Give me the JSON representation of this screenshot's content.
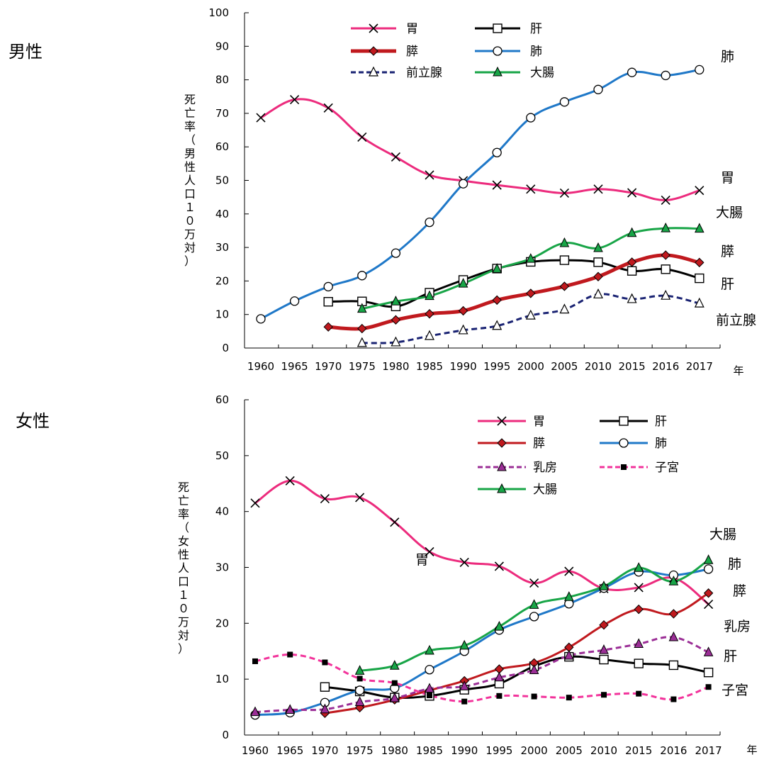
{
  "chart_data": [
    {
      "type": "line",
      "panel_label": "男性",
      "xlabel": "年",
      "ylabel": "死亡率（男性人口１０万対）",
      "ylim": [
        0,
        100
      ],
      "yticks": [
        0,
        10,
        20,
        30,
        40,
        50,
        60,
        70,
        80,
        90,
        100
      ],
      "categories": [
        "1960",
        "1965",
        "1970",
        "1975",
        "1980",
        "1985",
        "1990",
        "1995",
        "2000",
        "2005",
        "2010",
        "2015",
        "2016",
        "2017"
      ],
      "legend_position": "top",
      "series": [
        {
          "name": "胃",
          "color": "#EC2B7D",
          "marker": "x",
          "dash": false,
          "width": 3,
          "values": [
            68.7,
            74.1,
            71.6,
            62.9,
            57.0,
            51.6,
            49.9,
            48.6,
            47.4,
            46.2,
            47.4,
            46.3,
            44.1,
            47.0
          ]
        },
        {
          "name": "肝",
          "color": "#000000",
          "marker": "square-open",
          "dash": false,
          "width": 3,
          "values": [
            null,
            null,
            13.8,
            13.9,
            12.4,
            16.5,
            20.3,
            23.7,
            25.7,
            26.2,
            25.6,
            23.0,
            23.5,
            20.8
          ]
        },
        {
          "name": "膵",
          "color": "#C0191E",
          "marker": "diamond",
          "dash": false,
          "width": 5,
          "values": [
            null,
            null,
            6.3,
            5.8,
            8.4,
            10.2,
            11.1,
            14.3,
            16.3,
            18.4,
            21.3,
            25.6,
            27.7,
            25.5
          ]
        },
        {
          "name": "肺",
          "color": "#1F78C8",
          "marker": "circle-open",
          "dash": false,
          "width": 3,
          "values": [
            8.7,
            14.0,
            18.3,
            21.6,
            28.3,
            37.5,
            49.0,
            58.3,
            68.7,
            73.4,
            77.1,
            82.2,
            81.3,
            83.0
          ]
        },
        {
          "name": "前立腺",
          "color": "#1A2373",
          "marker": "triangle-open",
          "dash": true,
          "width": 3,
          "values": [
            null,
            null,
            null,
            1.5,
            1.7,
            3.6,
            5.3,
            6.6,
            9.7,
            11.5,
            16.0,
            14.6,
            15.6,
            13.3
          ]
        },
        {
          "name": "大腸",
          "color": "#18A547",
          "marker": "triangle",
          "dash": false,
          "width": 3,
          "values": [
            null,
            null,
            null,
            11.7,
            13.9,
            15.5,
            19.2,
            23.6,
            26.6,
            31.3,
            29.8,
            34.3,
            35.7,
            35.6
          ]
        }
      ],
      "end_labels": [
        "肺",
        "胃",
        "大腸",
        "膵",
        "肝",
        "前立腺"
      ]
    },
    {
      "type": "line",
      "panel_label": "女性",
      "xlabel": "年",
      "ylabel": "死亡率（女性人口１０万対）",
      "ylim": [
        0,
        60
      ],
      "yticks": [
        0,
        10,
        20,
        30,
        40,
        50,
        60
      ],
      "categories": [
        "1960",
        "1965",
        "1970",
        "1975",
        "1980",
        "1985",
        "1990",
        "1995",
        "2000",
        "2005",
        "2010",
        "2015",
        "2016",
        "2017"
      ],
      "legend_position": "top-right",
      "series": [
        {
          "name": "胃",
          "color": "#EC2B7D",
          "marker": "x",
          "dash": false,
          "width": 3,
          "values": [
            41.5,
            45.5,
            42.3,
            42.5,
            38.1,
            32.8,
            30.9,
            30.2,
            27.2,
            29.3,
            26.2,
            26.4,
            28.1,
            23.4
          ]
        },
        {
          "name": "肝",
          "color": "#000000",
          "marker": "square-open",
          "dash": false,
          "width": 3,
          "values": [
            null,
            null,
            8.6,
            7.8,
            6.7,
            7.0,
            8.1,
            9.2,
            12.3,
            14.0,
            13.5,
            12.8,
            12.5,
            11.2
          ]
        },
        {
          "name": "膵",
          "color": "#C0191E",
          "marker": "diamond",
          "dash": false,
          "width": 3,
          "values": [
            null,
            null,
            3.9,
            4.9,
            6.3,
            8.0,
            9.7,
            11.8,
            12.9,
            15.7,
            19.7,
            22.5,
            21.7,
            25.4
          ]
        },
        {
          "name": "肺",
          "color": "#1F78C8",
          "marker": "circle-open",
          "dash": false,
          "width": 3,
          "values": [
            3.6,
            4.0,
            5.8,
            8.0,
            8.4,
            11.7,
            15.0,
            18.8,
            21.2,
            23.5,
            26.3,
            29.2,
            28.6,
            29.7
          ]
        },
        {
          "name": "乳房",
          "color": "#9B2E96",
          "marker": "triangle",
          "dash": true,
          "width": 3,
          "values": [
            4.1,
            4.5,
            4.6,
            5.9,
            6.6,
            8.3,
            8.7,
            10.3,
            11.6,
            14.2,
            15.2,
            16.3,
            17.5,
            14.8
          ]
        },
        {
          "name": "子宮",
          "color": "#F2339B",
          "marker": "square",
          "dash": true,
          "width": 3,
          "values": [
            13.2,
            14.4,
            13.0,
            10.1,
            9.3,
            7.1,
            6.0,
            7.0,
            6.9,
            6.7,
            7.2,
            7.4,
            6.4,
            8.6
          ]
        },
        {
          "name": "大腸",
          "color": "#18A547",
          "marker": "triangle",
          "dash": false,
          "width": 3,
          "values": [
            null,
            null,
            null,
            11.5,
            12.4,
            15.1,
            16.0,
            19.4,
            23.3,
            24.7,
            26.6,
            29.9,
            27.5,
            31.3
          ]
        }
      ],
      "end_labels": [
        "大腸",
        "肺",
        "膵",
        "乳房",
        "肝",
        "子宮"
      ],
      "inline_labels": [
        "胃"
      ]
    }
  ]
}
